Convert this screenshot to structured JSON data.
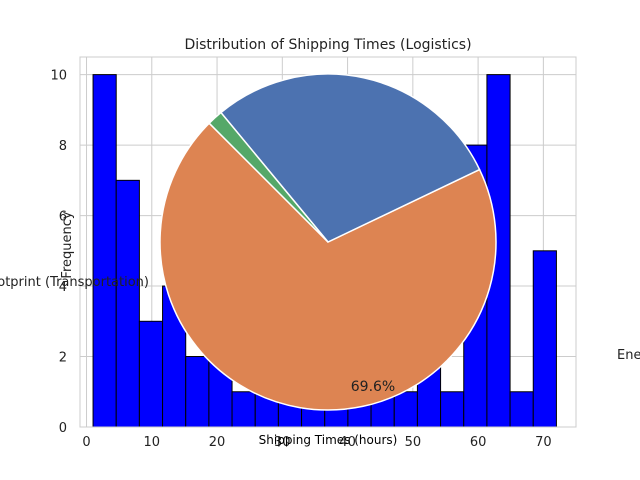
{
  "chart_data": [
    {
      "type": "bar",
      "title": "Distribution of Shipping Times (Logistics)",
      "xlabel": "Shipping Times (hours)",
      "ylabel": "Frequency",
      "xlim": [
        -1,
        75
      ],
      "ylim": [
        0,
        10.5
      ],
      "xticks": [
        0,
        10,
        20,
        30,
        40,
        50,
        60,
        70
      ],
      "yticks": [
        0,
        2,
        4,
        6,
        8,
        10
      ],
      "grid": true,
      "bar_color": "#0000ff",
      "bin_edges": [
        1,
        4.55,
        8.1,
        11.65,
        15.2,
        18.75,
        22.3,
        25.85,
        29.4,
        32.95,
        36.5,
        40.05,
        43.6,
        47.15,
        50.7,
        54.25,
        57.8,
        61.35,
        64.9,
        68.45,
        72
      ],
      "values": [
        10,
        7,
        3,
        4,
        2,
        2,
        1,
        1,
        1,
        1,
        1,
        1,
        1,
        1,
        2,
        1,
        8,
        10,
        1,
        5
      ]
    },
    {
      "type": "pie",
      "labels": [
        "Energy",
        "Carbon Footprint (Transportation)",
        ""
      ],
      "values": [
        69.6,
        28.9,
        1.5
      ],
      "percent_labels": [
        "69.6%",
        "",
        ""
      ],
      "colors": [
        "#dd8452",
        "#4c72b0",
        "#55a868"
      ],
      "start_angle": 135
    }
  ],
  "texts": {
    "title": "Distribution of Shipping Times (Logistics)",
    "xlabel": "Shipping Times (hours)",
    "ylabel": "Frequency",
    "energy_label": "Energy",
    "carbon_label": "Carbon Footprint (Transportation)",
    "pct_label": "69.6%"
  }
}
